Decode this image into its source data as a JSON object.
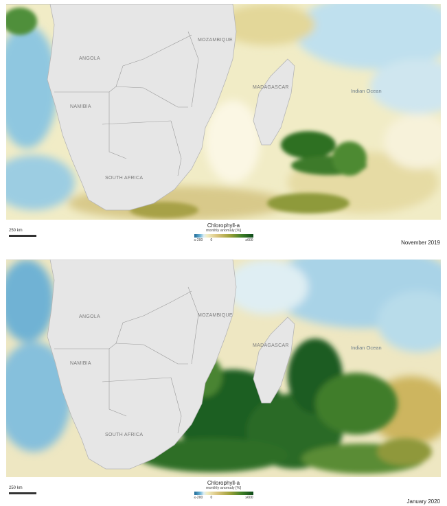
{
  "legend": {
    "title": "Chlorophyll-a",
    "subtitle": "monthly anomaly [%]",
    "tick_min": "≤-200",
    "tick_zero": "0",
    "tick_max": "≥600",
    "colors": [
      "#1f6a96",
      "#dfeef3",
      "#f2ecc0",
      "#d8c27a",
      "#9fa23a",
      "#3f7f26",
      "#0d4a1a"
    ]
  },
  "scale_bar": "250 km",
  "labels": {
    "angola": "ANGOLA",
    "namibia": "NAMIBIA",
    "south_africa": "SOUTH AFRICA",
    "mozambique": "MOZAMBIQUE",
    "madagascar": "MADAGASCAR",
    "indian_ocean": "Indian Ocean"
  },
  "panels": [
    {
      "date": "November 2019",
      "bloom_level": "moderate"
    },
    {
      "date": "January 2020",
      "bloom_level": "strong"
    }
  ],
  "colors": {
    "land": "#e6e6e6",
    "border": "#9a9a9a",
    "low": "#7fbfdc",
    "zero": "#f0ecc8",
    "high": "#1a5c22"
  }
}
